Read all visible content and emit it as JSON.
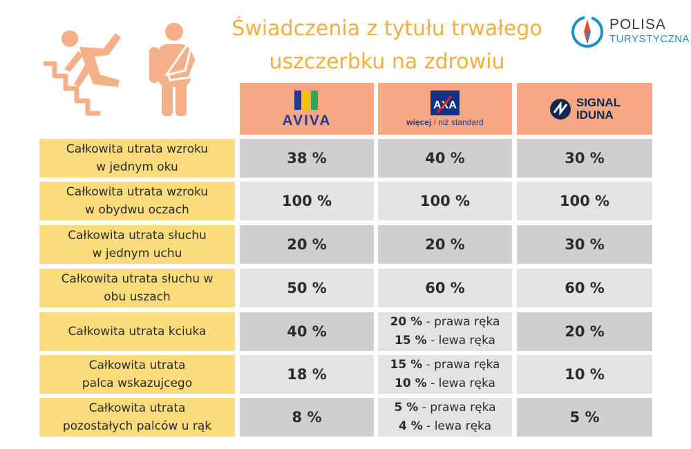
{
  "title": {
    "line1": "Świadczenia z tytułu trwałego",
    "line2": "uszczerbku na zdrowiu"
  },
  "brand": {
    "line1": "POLISA",
    "line2": "TURYSTYCZNA",
    "icon": "compass-icon"
  },
  "illustrations": [
    "falling-down-stairs-icon",
    "arm-sling-icon"
  ],
  "colors": {
    "title": "#f4ae3e",
    "header_bg": "#f7a882",
    "label_bg": "#fbdc7d",
    "value_bg": "#cfcfcf",
    "value_alt_bg": "#e3e3e3",
    "figure": "#f6b088"
  },
  "insurers": [
    {
      "name": "AVIVA"
    },
    {
      "name": "AXA",
      "tagline_bold": "więcej",
      "tagline_rest": "niż standard"
    },
    {
      "name_line1": "SIGNAL",
      "name_line2": "IDUNA"
    }
  ],
  "rows": [
    {
      "label1": "Całkowita utrata wzroku",
      "label2": "w jednym oku",
      "aviva": "38 %",
      "axa": "40 %",
      "signal": "30 %"
    },
    {
      "label1": "Całkowita utrata wzroku",
      "label2": "w obydwu oczach",
      "aviva": "100 %",
      "axa": "100 %",
      "signal": "100 %"
    },
    {
      "label1": "Całkowita utrata słuchu",
      "label2": "w jednym uchu",
      "aviva": "20 %",
      "axa": "20 %",
      "signal": "30 %"
    },
    {
      "label1": "Całkowita utrata słuchu w",
      "label2": "obu uszach",
      "aviva": "50 %",
      "axa": "60 %",
      "signal": "60 %"
    },
    {
      "label1": "Całkowita utrata kciuka",
      "label2": "",
      "aviva": "40 %",
      "axa_right": "20 %",
      "axa_right_text": " - prawa ręka",
      "axa_left": "15 %",
      "axa_left_text": " - lewa ręka",
      "signal": "20 %"
    },
    {
      "label1": "Całkowita utrata",
      "label2": "palca wskazujcego",
      "aviva": "18 %",
      "axa_right": "15 %",
      "axa_right_text": " - prawa ręka",
      "axa_left": "10 %",
      "axa_left_text": " - lewa ręka",
      "signal": "10 %"
    },
    {
      "label1": "Całkowita utrata",
      "label2": "pozostałych palców u rąk",
      "aviva": "8 %",
      "axa_right": "5 %",
      "axa_right_text": " - prawa ręka",
      "axa_left": "4 %",
      "axa_left_text": " - lewa ręka",
      "signal": "5 %"
    }
  ]
}
